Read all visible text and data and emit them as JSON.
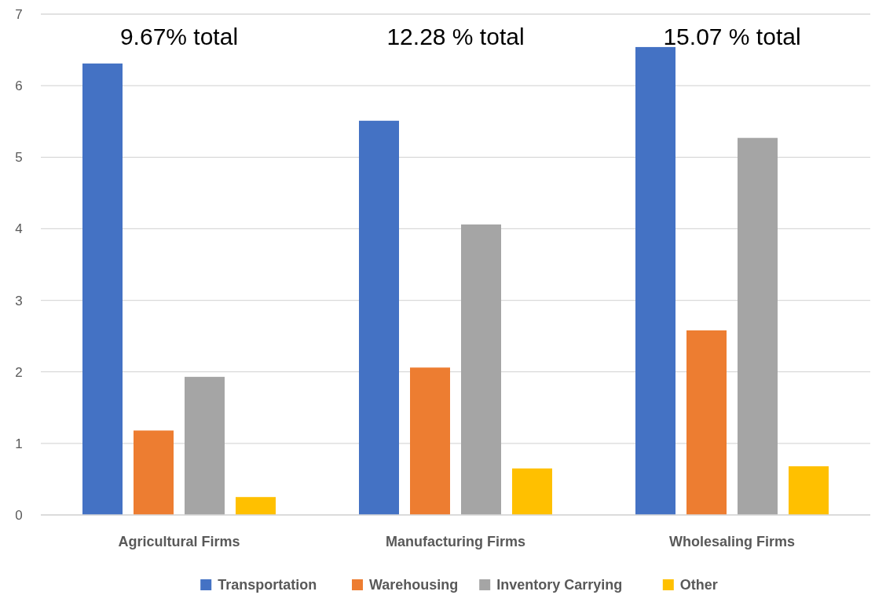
{
  "chart_data": {
    "type": "bar",
    "categories": [
      "Agricultural Firms",
      "Manufacturing Firms",
      "Wholesaling Firms"
    ],
    "series": [
      {
        "name": "Transportation",
        "color": "#4472c4",
        "values": [
          6.31,
          5.51,
          6.54
        ]
      },
      {
        "name": "Warehousing",
        "color": "#ed7d31",
        "values": [
          1.18,
          2.06,
          2.58
        ]
      },
      {
        "name": "Inventory Carrying",
        "color": "#a5a5a5",
        "values": [
          1.93,
          4.06,
          5.27
        ]
      },
      {
        "name": "Other",
        "color": "#ffc000",
        "values": [
          0.25,
          0.65,
          0.68
        ]
      }
    ],
    "ylim": [
      0,
      7
    ],
    "yticks": [
      0,
      1,
      2,
      3,
      4,
      5,
      6,
      7
    ],
    "grid": "y",
    "legend": "bottom",
    "annotations": [
      "9.67% total",
      "12.28 % total",
      "15.07 % total"
    ]
  }
}
